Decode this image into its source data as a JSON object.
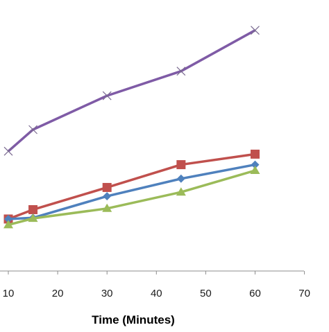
{
  "chart_data": {
    "type": "line",
    "xlabel": "Time (Minutes)",
    "ylabel": "",
    "xlim": [
      10,
      70
    ],
    "x_ticks": [
      10,
      20,
      30,
      40,
      50,
      60,
      70
    ],
    "grid": false,
    "legend": "none",
    "series": [
      {
        "color": "#7f5ba6",
        "marker": "x",
        "x": [
          10,
          15,
          30,
          45,
          60
        ],
        "y": [
          2.05,
          2.42,
          3.0,
          3.42,
          4.12
        ]
      },
      {
        "color": "#c0504d",
        "marker": "square",
        "x": [
          10,
          15,
          30,
          45,
          60
        ],
        "y": [
          0.89,
          1.05,
          1.43,
          1.82,
          2.0
        ]
      },
      {
        "color": "#4f81bd",
        "marker": "diamond",
        "x": [
          10,
          15,
          30,
          45,
          60
        ],
        "y": [
          0.89,
          0.91,
          1.28,
          1.58,
          1.82
        ]
      },
      {
        "color": "#9bbb59",
        "marker": "triangle",
        "x": [
          10,
          15,
          30,
          45,
          60
        ],
        "y": [
          0.79,
          0.9,
          1.07,
          1.35,
          1.72
        ]
      }
    ]
  }
}
